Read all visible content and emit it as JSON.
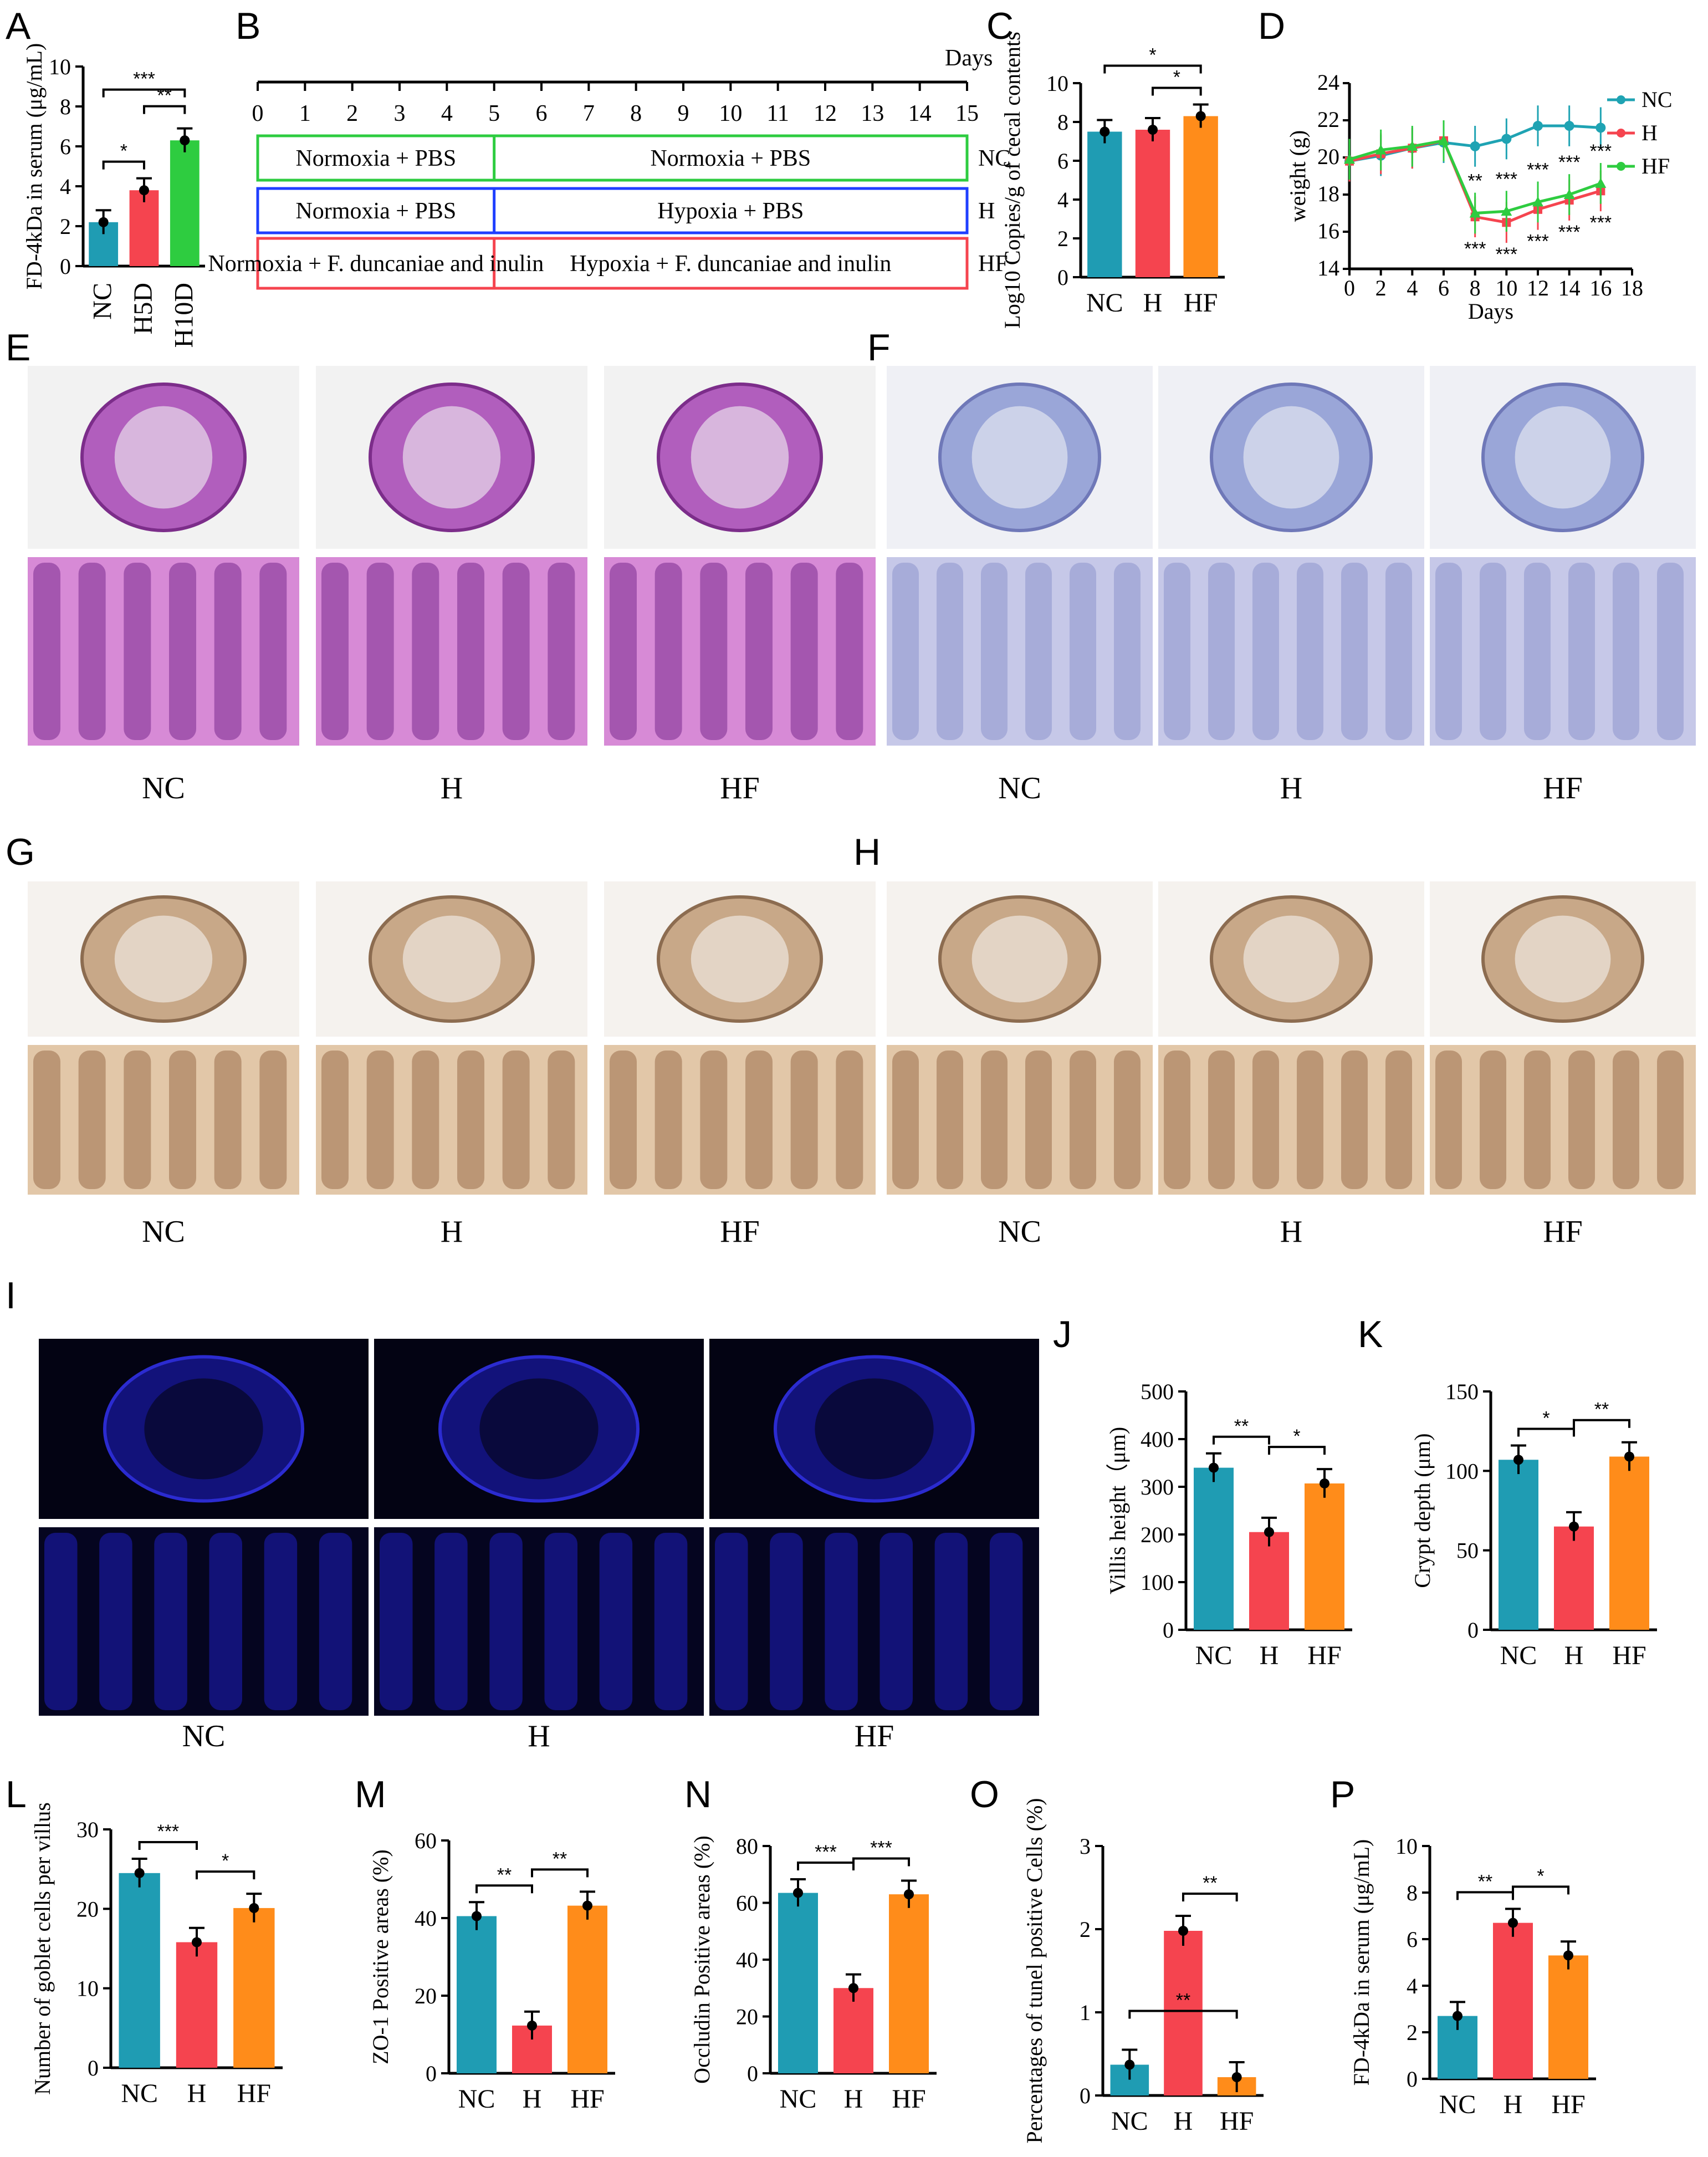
{
  "panel_labels": [
    "A",
    "B",
    "C",
    "D",
    "E",
    "F",
    "G",
    "H",
    "I",
    "J",
    "K",
    "L",
    "M",
    "N",
    "O",
    "P"
  ],
  "colors": {
    "nc": "#1f9cb3",
    "h": "#f5444f",
    "hf": "#ff8c1a",
    "green": "#2ecc40",
    "blue": "#1f3fff",
    "nc_line": "#1fa3b3",
    "h_line": "#f5444f",
    "hf_line": "#2ecc40"
  },
  "timeline": {
    "unit": "Days",
    "days": [
      "0",
      "1",
      "2",
      "3",
      "4",
      "5",
      "6",
      "7",
      "8",
      "9",
      "10",
      "11",
      "12",
      "13",
      "14",
      "15"
    ],
    "rows": [
      {
        "left": "Normoxia + PBS",
        "right": "Normoxia + PBS",
        "group": "NC",
        "color": "#2ecc40"
      },
      {
        "left": "Normoxia + PBS",
        "right": "Hypoxia + PBS",
        "group": "H",
        "color": "#1f3fff"
      },
      {
        "left": "Normoxia + F. duncaniae and inulin",
        "right": "Hypoxia + F. duncaniae and inulin",
        "group": "HF",
        "color": "#f5444f"
      }
    ]
  },
  "image_group_labels": {
    "E": [
      "NC",
      "H",
      "HF"
    ],
    "F": [
      "NC",
      "H",
      "HF"
    ],
    "G": [
      "NC",
      "H",
      "HF"
    ],
    "H": [
      "NC",
      "H",
      "HF"
    ],
    "I": [
      "NC",
      "H",
      "HF"
    ]
  },
  "chart_data": [
    {
      "panel": "A",
      "type": "bar",
      "categories": [
        "NC",
        "H5D",
        "H10D"
      ],
      "values": [
        2.2,
        3.8,
        6.3
      ],
      "ylabel": "FD-4kDa in serum (μg/mL)",
      "ylim": [
        0,
        10
      ],
      "yticks": [
        "0",
        "2",
        "4",
        "6",
        "8",
        "10"
      ],
      "sig": [
        "*",
        "**",
        "***"
      ]
    },
    {
      "panel": "C",
      "type": "bar",
      "categories": [
        "NC",
        "H",
        "HF"
      ],
      "values": [
        7.5,
        7.6,
        8.3
      ],
      "ylabel": "Log10 Copies/g of cecal contents",
      "ylim": [
        0,
        10
      ],
      "yticks": [
        "0",
        "2",
        "4",
        "6",
        "8",
        "10"
      ],
      "sig": [
        "*",
        "*"
      ]
    },
    {
      "panel": "D",
      "type": "line",
      "x": [
        0,
        2,
        4,
        6,
        8,
        10,
        12,
        14,
        16
      ],
      "xlabel": "Days",
      "ylabel": "weight (g)",
      "ylim": [
        14,
        24
      ],
      "xlim": [
        0,
        18
      ],
      "yticks": [
        "14",
        "16",
        "18",
        "20",
        "22",
        "24"
      ],
      "xticks": [
        "0",
        "2",
        "4",
        "6",
        "8",
        "10",
        "12",
        "14",
        "16",
        "18"
      ],
      "legend": "top-right",
      "series": [
        {
          "name": "NC",
          "values": [
            19.8,
            20.1,
            20.5,
            20.8,
            20.6,
            21.0,
            21.7,
            21.7,
            21.6
          ]
        },
        {
          "name": "H",
          "values": [
            19.8,
            20.2,
            20.5,
            20.9,
            16.8,
            16.5,
            17.2,
            17.7,
            18.2
          ]
        },
        {
          "name": "HF",
          "values": [
            19.9,
            20.4,
            20.6,
            20.9,
            17.0,
            17.1,
            17.6,
            18.0,
            18.6
          ]
        }
      ],
      "sig_top": [
        "**",
        "***",
        "***",
        "***",
        "***"
      ],
      "sig_bottom": [
        "***",
        "***",
        "***",
        "***",
        "***"
      ]
    },
    {
      "panel": "J",
      "type": "bar",
      "categories": [
        "NC",
        "H",
        "HF"
      ],
      "values": [
        340,
        205,
        307
      ],
      "ylabel": "Villis height（μm)",
      "ylim": [
        0,
        500
      ],
      "yticks": [
        "0",
        "100",
        "200",
        "300",
        "400",
        "500"
      ],
      "sig": [
        "**",
        "*"
      ]
    },
    {
      "panel": "K",
      "type": "bar",
      "categories": [
        "NC",
        "H",
        "HF"
      ],
      "values": [
        107,
        65,
        109
      ],
      "ylabel": "Crypt depth (μm)",
      "ylim": [
        0,
        150
      ],
      "yticks": [
        "0",
        "50",
        "100",
        "150"
      ],
      "sig": [
        "*",
        "**"
      ]
    },
    {
      "panel": "L",
      "type": "bar",
      "categories": [
        "NC",
        "H",
        "HF"
      ],
      "values": [
        24.5,
        15.8,
        20.1
      ],
      "ylabel": "Number of goblet cells per villus",
      "ylim": [
        0,
        30
      ],
      "yticks": [
        "0",
        "10",
        "20",
        "30"
      ],
      "sig": [
        "***",
        "*"
      ]
    },
    {
      "panel": "M",
      "type": "bar",
      "categories": [
        "NC",
        "H",
        "HF"
      ],
      "values": [
        40.5,
        12.3,
        43.2
      ],
      "ylabel": "ZO-1  Positive areas (%)",
      "ylim": [
        0,
        60
      ],
      "yticks": [
        "0",
        "20",
        "40",
        "60"
      ],
      "sig": [
        "**",
        "**"
      ]
    },
    {
      "panel": "N",
      "type": "bar",
      "categories": [
        "NC",
        "H",
        "HF"
      ],
      "values": [
        63.5,
        30.0,
        63.0
      ],
      "ylabel": "Occludin Positive areas (%)",
      "ylim": [
        0,
        80
      ],
      "yticks": [
        "0",
        "20",
        "40",
        "60",
        "80"
      ],
      "sig": [
        "***",
        "***"
      ]
    },
    {
      "panel": "O",
      "type": "bar",
      "categories": [
        "NC",
        "H",
        "HF"
      ],
      "values": [
        0.37,
        1.98,
        0.22
      ],
      "ylabel": "Percentages of tunel positive Cells (%)",
      "ylim": [
        0,
        3
      ],
      "yticks": [
        "0",
        "1",
        "2",
        "3"
      ],
      "sig": [
        "**",
        "**"
      ]
    },
    {
      "panel": "P",
      "type": "bar",
      "categories": [
        "NC",
        "H",
        "HF"
      ],
      "values": [
        2.7,
        6.7,
        5.3
      ],
      "ylabel": "FD-4kDa in serum (μg/mL)",
      "ylim": [
        0,
        10
      ],
      "yticks": [
        "0",
        "2",
        "4",
        "6",
        "8",
        "10"
      ],
      "sig": [
        "**",
        "*"
      ]
    }
  ]
}
